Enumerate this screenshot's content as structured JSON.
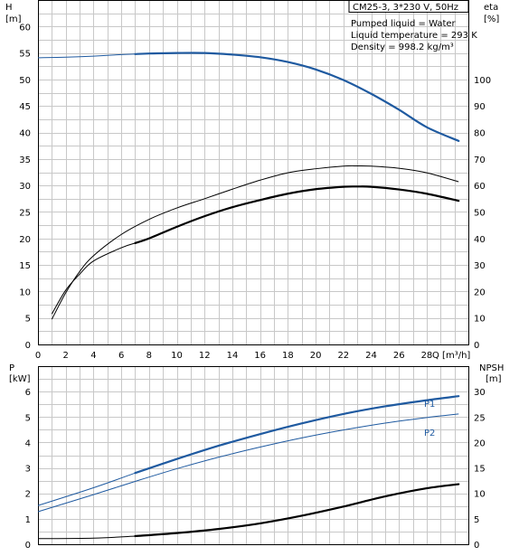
{
  "chart_data": [
    {
      "type": "line",
      "title": "CM25-3, 3*230 V, 50Hz",
      "annotations": [
        "Pumped liquid = Water",
        "Liquid temperature = 293 K",
        "Density = 998.2 kg/m³"
      ],
      "xlabel": "Q [m³/h]",
      "ylabel_left": "H",
      "ylabel_left_unit": "[m]",
      "ylabel_right": "eta",
      "ylabel_right_unit": "[%]",
      "xlim": [
        0,
        31
      ],
      "ylim_left": [
        0,
        65
      ],
      "ylim_right": [
        0,
        130
      ],
      "x_ticks": [
        0,
        2,
        4,
        6,
        8,
        10,
        12,
        14,
        16,
        18,
        20,
        22,
        24,
        26,
        28
      ],
      "y_ticks_left": [
        0,
        5,
        10,
        15,
        20,
        25,
        30,
        35,
        40,
        45,
        50,
        55,
        60
      ],
      "y_ticks_right": [
        0,
        10,
        20,
        30,
        40,
        50,
        60,
        70,
        80,
        90,
        100
      ],
      "grid": true,
      "series": [
        {
          "axis": "left",
          "color": "#1f5aa0",
          "width": 2.2,
          "x": [
            0,
            2,
            4,
            6,
            8,
            10,
            12,
            14,
            16,
            18,
            20,
            22,
            24,
            26,
            28,
            30.3
          ],
          "y": [
            54.1,
            54.2,
            54.4,
            54.7,
            54.9,
            55.0,
            55.0,
            54.7,
            54.2,
            53.3,
            51.9,
            49.9,
            47.3,
            44.3,
            41.0,
            38.4
          ],
          "highlight_from": 7
        },
        {
          "axis": "right",
          "color": "#000000",
          "width": 1,
          "x": [
            1,
            2,
            3,
            4,
            6,
            8,
            10,
            12,
            14,
            16,
            18,
            20,
            22,
            23,
            24,
            26,
            28,
            30.3
          ],
          "y": [
            9.5,
            19.5,
            27.5,
            33.5,
            41.5,
            47.2,
            51.5,
            55.0,
            58.6,
            62.0,
            64.8,
            66.3,
            67.3,
            67.4,
            67.3,
            66.5,
            64.8,
            61.4
          ]
        },
        {
          "axis": "right",
          "color": "#000000",
          "width": 2.2,
          "x": [
            1,
            2,
            3,
            4,
            6,
            8,
            10,
            12,
            14,
            16,
            18,
            20,
            22,
            23,
            24,
            26,
            28,
            30.3
          ],
          "y": [
            11.5,
            20.5,
            26.5,
            31.5,
            36.5,
            40.0,
            44.4,
            48.4,
            51.8,
            54.5,
            56.9,
            58.6,
            59.5,
            59.6,
            59.5,
            58.5,
            56.9,
            54.2
          ],
          "highlight_from": 7
        }
      ]
    },
    {
      "type": "line",
      "xlim": [
        0,
        31
      ],
      "ylabel_left": "P",
      "ylabel_left_unit": "[kW]",
      "ylabel_right": "NPSH",
      "ylabel_right_unit": "[m]",
      "ylim_left": [
        0,
        7
      ],
      "ylim_right": [
        0,
        35
      ],
      "y_ticks_left": [
        0,
        1,
        2,
        3,
        4,
        5,
        6
      ],
      "y_ticks_right": [
        0,
        5,
        10,
        15,
        20,
        25,
        30
      ],
      "grid": true,
      "series": [
        {
          "name": "P1",
          "axis": "left",
          "color": "#1f5aa0",
          "width": 2.2,
          "x": [
            0,
            4,
            7,
            10,
            13,
            16,
            19,
            22,
            25,
            28,
            30.3
          ],
          "y": [
            1.52,
            2.22,
            2.8,
            3.35,
            3.87,
            4.33,
            4.75,
            5.12,
            5.42,
            5.66,
            5.82
          ],
          "highlight_from": 7
        },
        {
          "name": "P2",
          "axis": "left",
          "color": "#1f5aa0",
          "width": 1,
          "x": [
            0,
            4,
            7,
            10,
            13,
            16,
            19,
            22,
            25,
            28,
            30.3
          ],
          "y": [
            1.28,
            1.95,
            2.47,
            2.97,
            3.42,
            3.82,
            4.18,
            4.49,
            4.76,
            4.98,
            5.12
          ]
        },
        {
          "axis": "right",
          "color": "#000000",
          "width": 2.2,
          "x": [
            0,
            4,
            7,
            10,
            13,
            16,
            19,
            22,
            25,
            28,
            30.3
          ],
          "y": [
            1.1,
            1.2,
            1.6,
            2.2,
            3.0,
            4.1,
            5.6,
            7.4,
            9.4,
            11.0,
            11.8
          ],
          "highlight_from": 7
        }
      ]
    }
  ]
}
